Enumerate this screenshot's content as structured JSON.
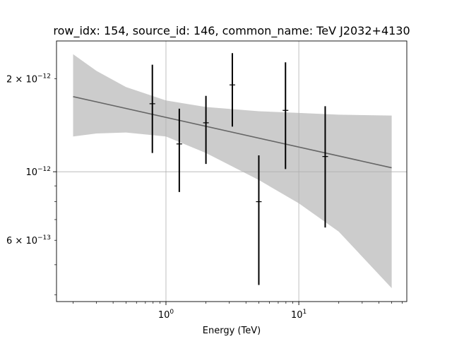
{
  "chart_data": {
    "type": "scatter",
    "title": "row_idx: 154, source_id: 146, common_name: TeV J2032+4130",
    "xlabel": "Energy (TeV)",
    "ylabel": "",
    "x_scale": "log",
    "y_scale": "log",
    "xlim": [
      0.15,
      65
    ],
    "ylim": [
      3.8e-13,
      2.65e-12
    ],
    "grid": "major ticks only",
    "x_ticks": [
      {
        "value": 1,
        "base": "10",
        "exp": "0"
      },
      {
        "value": 10,
        "base": "10",
        "exp": "1"
      }
    ],
    "y_ticks": [
      {
        "value": 2e-12,
        "mantissa": "2",
        "exp": "−12"
      },
      {
        "value": 1e-12,
        "mantissa": "10",
        "exp": "−12",
        "style": "power"
      },
      {
        "value": 6e-13,
        "mantissa": "6",
        "exp": "−13"
      }
    ],
    "series": [
      {
        "type": "errorbar",
        "color": "#000000",
        "x": [
          0.79,
          1.26,
          2.0,
          3.16,
          5.0,
          7.94,
          15.8
        ],
        "y": [
          1.66e-12,
          1.23e-12,
          1.44e-12,
          1.91e-12,
          8e-13,
          1.58e-12,
          1.12e-12
        ],
        "y_lower": [
          1.15e-12,
          8.6e-13,
          1.06e-12,
          1.4e-12,
          4.3e-13,
          1.02e-12,
          6.6e-13
        ],
        "y_upper": [
          2.22e-12,
          1.6e-12,
          1.76e-12,
          2.42e-12,
          1.13e-12,
          2.26e-12,
          1.63e-12
        ]
      },
      {
        "type": "model_line",
        "color": "#666666",
        "x": [
          0.2,
          50
        ],
        "y": [
          1.75e-12,
          1.03e-12
        ]
      },
      {
        "type": "band",
        "color": "#cccccc",
        "x": [
          0.2,
          0.3,
          0.5,
          1.0,
          2.0,
          5.0,
          10.0,
          20.0,
          50.0
        ],
        "y_lower": [
          1.3e-12,
          1.33e-12,
          1.34e-12,
          1.3e-12,
          1.15e-12,
          9.4e-13,
          7.9e-13,
          6.4e-13,
          4.2e-13
        ],
        "y_upper": [
          2.4e-12,
          2.12e-12,
          1.88e-12,
          1.7e-12,
          1.62e-12,
          1.57e-12,
          1.55e-12,
          1.53e-12,
          1.52e-12
        ]
      }
    ]
  }
}
